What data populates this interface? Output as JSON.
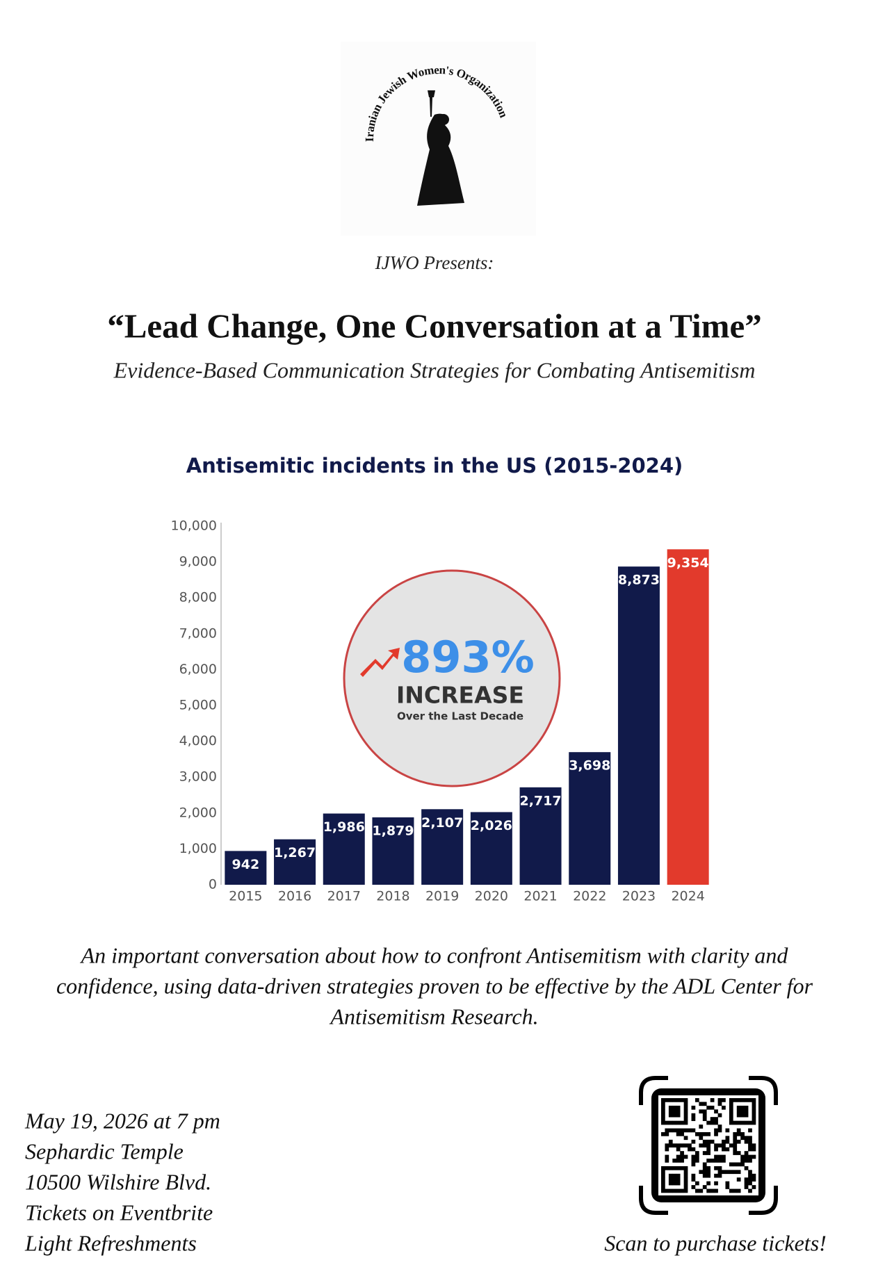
{
  "logo": {
    "text": "Iranian Jewish Women's Organization"
  },
  "header": {
    "presents": "IJWO Presents:",
    "title": "“Lead Change, One Conversation at a Time”",
    "subtitle": "Evidence-Based Communication Strategies for Combating Antisemitism"
  },
  "chart_data": {
    "type": "bar",
    "title": "Antisemitic incidents in the US (2015-2024)",
    "categories": [
      "2015",
      "2016",
      "2017",
      "2018",
      "2019",
      "2020",
      "2021",
      "2022",
      "2023",
      "2024"
    ],
    "values": [
      942,
      1267,
      1986,
      1879,
      2107,
      2026,
      2717,
      3698,
      8873,
      9354
    ],
    "value_labels": [
      "942",
      "1,267",
      "1,986",
      "1,879",
      "2,107",
      "2,026",
      "2,717",
      "3,698",
      "8,873",
      "9,354"
    ],
    "colors": [
      "#111a4a",
      "#111a4a",
      "#111a4a",
      "#111a4a",
      "#111a4a",
      "#111a4a",
      "#111a4a",
      "#111a4a",
      "#111a4a",
      "#e23a2c"
    ],
    "ylim": [
      0,
      10000
    ],
    "yticks": [
      0,
      {
        "value": 1000,
        "label": "1,000"
      },
      {
        "value": 2000,
        "label": "2,000"
      },
      {
        "value": 3000,
        "label": "3,000"
      },
      {
        "value": 4000,
        "label": "4,000"
      },
      {
        "value": 5000,
        "label": "5,000"
      },
      {
        "value": 6000,
        "label": "6,000"
      },
      {
        "value": 7000,
        "label": "7,000"
      },
      {
        "value": 8000,
        "label": "8,000"
      },
      {
        "value": 9000,
        "label": "9,000"
      },
      {
        "value": 10000,
        "label": "10,000"
      }
    ],
    "grid": false,
    "annotation": {
      "headline": "893%",
      "label": "INCREASE",
      "note": "Over the Last Decade"
    }
  },
  "description": [
    "An important conversation about how to confront Antisemitism with clarity and",
    "confidence, using data-driven strategies proven to be effective by the ADL Center for",
    "Antisemitism Research."
  ],
  "details": [
    "May 19, 2026 at 7 pm",
    "Sephardic Temple",
    "10500 Wilshire Blvd.",
    "Tickets on Eventbrite",
    "Light Refreshments"
  ],
  "qr": {
    "caption": "Scan to purchase tickets!"
  }
}
